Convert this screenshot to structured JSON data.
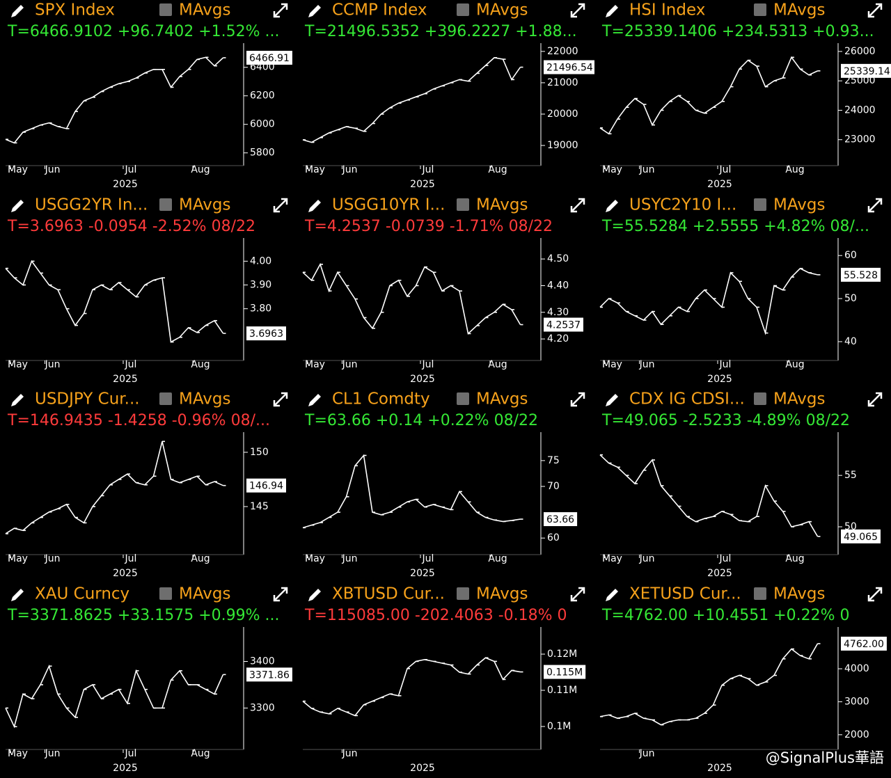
{
  "chart_data": [
    {
      "type": "line",
      "title": "SPX Index",
      "mavgs_label": "MAvgs",
      "quote": "T=6466.9102 +96.7402 +1.52% ...",
      "quote_color": "#35e835",
      "color": "#ffffff",
      "x_label": "2025",
      "categories": [
        null,
        "May",
        null,
        null,
        null,
        "Jun",
        null,
        null,
        null,
        null,
        null,
        null,
        null,
        null,
        "Jul",
        null,
        null,
        null,
        null,
        null,
        null,
        null,
        "Aug",
        null,
        null,
        null
      ],
      "values": [
        5895,
        5870,
        5945,
        5970,
        5995,
        6010,
        5985,
        5970,
        6090,
        6165,
        6190,
        6230,
        6260,
        6285,
        6300,
        6325,
        6360,
        6385,
        6385,
        6260,
        6335,
        6385,
        6455,
        6470,
        6410,
        6466.91
      ],
      "ylim": [
        5740,
        6540
      ],
      "yticks": [
        5800,
        6000,
        6200,
        6400
      ],
      "last_price": {
        "value": 6466.91,
        "label": "6466.91"
      }
    },
    {
      "type": "line",
      "title": "CCMP Index",
      "mavgs_label": "MAvgs",
      "quote": "T=21496.5352 +396.2227 +1.88...",
      "quote_color": "#35e835",
      "color": "#ffffff",
      "x_label": "2025",
      "categories": [
        null,
        "May",
        null,
        null,
        null,
        "Jun",
        null,
        null,
        null,
        null,
        null,
        null,
        null,
        null,
        "Jul",
        null,
        null,
        null,
        null,
        null,
        null,
        null,
        "Aug",
        null,
        null,
        null
      ],
      "values": [
        19180,
        19100,
        19250,
        19400,
        19500,
        19600,
        19550,
        19450,
        19700,
        20000,
        20200,
        20350,
        20450,
        20550,
        20650,
        20800,
        20900,
        21000,
        21100,
        21050,
        21300,
        21550,
        21800,
        21750,
        21100,
        21496.54
      ],
      "ylim": [
        18490,
        22130
      ],
      "yticks": [
        19000,
        20000,
        21000,
        22000
      ],
      "last_price": {
        "value": 21496.54,
        "label": "21496.54"
      }
    },
    {
      "type": "line",
      "title": "HSI Index",
      "mavgs_label": "MAvgs",
      "quote": "T=25339.1406 +234.5313 +0.93...",
      "quote_color": "#35e835",
      "color": "#ffffff",
      "x_label": "2025",
      "categories": [
        null,
        "May",
        null,
        null,
        null,
        "Jun",
        null,
        null,
        null,
        null,
        null,
        null,
        null,
        null,
        "Jul",
        null,
        null,
        null,
        null,
        null,
        null,
        null,
        "Aug",
        null,
        null,
        null
      ],
      "values": [
        23400,
        23200,
        23700,
        24100,
        24400,
        24200,
        23500,
        24000,
        24300,
        24500,
        24300,
        24000,
        23900,
        24100,
        24300,
        24800,
        25400,
        25700,
        25500,
        24800,
        25000,
        25100,
        25800,
        25400,
        25200,
        25339.14
      ],
      "ylim": [
        22260,
        26140
      ],
      "yticks": [
        23000,
        24000,
        25000,
        26000
      ],
      "last_price": {
        "value": 25339.14,
        "label": "25339.14"
      }
    },
    {
      "type": "line",
      "title": "USGG2YR In...",
      "mavgs_label": "MAvgs",
      "quote": "T=3.6963 -0.0954 -2.52% 08/22",
      "quote_color": "#ff3b3b",
      "color": "#ffffff",
      "x_label": "2025",
      "categories": [
        null,
        "May",
        null,
        null,
        null,
        "Jun",
        null,
        null,
        null,
        null,
        null,
        null,
        null,
        null,
        "Jul",
        null,
        null,
        null,
        null,
        null,
        null,
        null,
        "Aug",
        null,
        null,
        null
      ],
      "values": [
        3.97,
        3.93,
        3.9,
        4.0,
        3.95,
        3.9,
        3.88,
        3.8,
        3.73,
        3.78,
        3.88,
        3.9,
        3.88,
        3.91,
        3.88,
        3.85,
        3.9,
        3.92,
        3.93,
        3.66,
        3.68,
        3.72,
        3.7,
        3.73,
        3.75,
        3.6963
      ],
      "ylim": [
        3.6,
        4.08
      ],
      "yticks": [
        {
          "value": 3.8,
          "label": "3.80"
        },
        {
          "value": 3.9,
          "label": "3.90"
        },
        {
          "value": 4,
          "label": "4.00"
        }
      ],
      "last_price": {
        "value": 3.6963,
        "label": "3.6963"
      }
    },
    {
      "type": "line",
      "title": "USGG10YR I...",
      "mavgs_label": "MAvgs",
      "quote": "T=4.2537 -0.0739 -1.71% 08/22",
      "quote_color": "#ff3b3b",
      "color": "#ffffff",
      "x_label": "2025",
      "categories": [
        null,
        "May",
        null,
        null,
        null,
        "Jun",
        null,
        null,
        null,
        null,
        null,
        null,
        null,
        null,
        "Jul",
        null,
        null,
        null,
        null,
        null,
        null,
        null,
        "Aug",
        null,
        null,
        null
      ],
      "values": [
        4.45,
        4.42,
        4.48,
        4.38,
        4.45,
        4.4,
        4.35,
        4.28,
        4.24,
        4.3,
        4.4,
        4.42,
        4.36,
        4.4,
        4.47,
        4.45,
        4.38,
        4.4,
        4.38,
        4.22,
        4.25,
        4.28,
        4.3,
        4.33,
        4.31,
        4.2537
      ],
      "ylim": [
        4.135,
        4.563
      ],
      "yticks": [
        {
          "value": 4.2,
          "label": "4.20"
        },
        {
          "value": 4.3,
          "label": "4.30"
        },
        {
          "value": 4.4,
          "label": "4.40"
        },
        {
          "value": 4.5,
          "label": "4.50"
        }
      ],
      "last_price": {
        "value": 4.2537,
        "label": "4.2537"
      }
    },
    {
      "type": "line",
      "title": "USYC2Y10 I...",
      "mavgs_label": "MAvgs",
      "quote": "T=55.5284 +2.5555 +4.82% 08/...",
      "quote_color": "#35e835",
      "color": "#ffffff",
      "x_label": "2025",
      "categories": [
        null,
        "May",
        null,
        null,
        null,
        "Jun",
        null,
        null,
        null,
        null,
        null,
        null,
        null,
        null,
        "Jul",
        null,
        null,
        null,
        null,
        null,
        null,
        null,
        "Aug",
        null,
        null,
        null
      ],
      "values": [
        48,
        50,
        49,
        47,
        46,
        45,
        47,
        44,
        46,
        48,
        47,
        50,
        52,
        50,
        48,
        56,
        54,
        50,
        48,
        42,
        53,
        52,
        55,
        57,
        56,
        55.5284
      ],
      "ylim": [
        36.6,
        63.1
      ],
      "yticks": [
        40,
        50,
        60
      ],
      "last_price": {
        "value": 55.528,
        "label": "55.528"
      }
    },
    {
      "type": "line",
      "title": "USDJPY Cur...",
      "mavgs_label": "MAvgs",
      "quote": "T=146.9435 -1.4258 -0.96% 08/...",
      "quote_color": "#ff3b3b",
      "color": "#ffffff",
      "x_label": "2025",
      "categories": [
        null,
        "May",
        null,
        null,
        null,
        "Jun",
        null,
        null,
        null,
        null,
        null,
        null,
        null,
        null,
        "Jul",
        null,
        null,
        null,
        null,
        null,
        null,
        null,
        "Aug",
        null,
        null,
        null
      ],
      "values": [
        142.5,
        143,
        142.8,
        143.5,
        144,
        144.5,
        144.8,
        145.2,
        144,
        143.5,
        145,
        146,
        147,
        147.5,
        148,
        147.2,
        147,
        147.8,
        151,
        147.5,
        147.2,
        147.5,
        147.8,
        147,
        147.3,
        146.94
      ],
      "ylim": [
        140.96,
        151.47
      ],
      "yticks": [
        145,
        150
      ],
      "last_price": {
        "value": 146.94,
        "label": "146.94"
      }
    },
    {
      "type": "line",
      "title": "CL1 Comdty",
      "mavgs_label": "MAvgs",
      "quote": "T=63.66 +0.14 +0.22% 08/22",
      "quote_color": "#35e835",
      "color": "#ffffff",
      "x_label": "2025",
      "categories": [
        null,
        "May",
        null,
        null,
        null,
        "Jun",
        null,
        null,
        null,
        null,
        null,
        null,
        null,
        null,
        "Jul",
        null,
        null,
        null,
        null,
        null,
        null,
        null,
        "Aug",
        null,
        null,
        null
      ],
      "values": [
        62,
        62.5,
        63,
        64,
        65,
        68,
        74,
        76,
        65,
        64.5,
        65,
        66,
        67,
        67.5,
        66,
        66.5,
        66,
        65.5,
        69,
        67,
        65,
        64,
        63.5,
        63.2,
        63.4,
        63.66
      ],
      "ylim": [
        57.6,
        79.7
      ],
      "yticks": [
        60,
        70,
        75
      ],
      "last_price": {
        "value": 63.66,
        "label": "63.66"
      }
    },
    {
      "type": "line",
      "title": "CDX IG CDSI...",
      "mavgs_label": "MAvgs",
      "quote": "T=49.065 -2.5233 -4.89% 08/22",
      "quote_color": "#35e835",
      "color": "#ffffff",
      "x_label": "2025",
      "categories": [
        null,
        "May",
        null,
        null,
        null,
        "Jun",
        null,
        null,
        null,
        null,
        null,
        null,
        null,
        null,
        "Jul",
        null,
        null,
        null,
        null,
        null,
        null,
        null,
        "Aug",
        null,
        null,
        null
      ],
      "values": [
        57,
        56.2,
        55.8,
        55,
        54.2,
        55.5,
        56.5,
        54,
        53,
        52,
        51,
        50.5,
        50.8,
        51,
        51.5,
        51.2,
        50.6,
        50.5,
        51,
        54,
        52.5,
        51.5,
        50,
        50.2,
        50.5,
        49.065
      ],
      "ylim": [
        47.7,
        58.8
      ],
      "yticks": [
        50,
        55
      ],
      "last_price": {
        "value": 49.065,
        "label": "49.065"
      }
    },
    {
      "type": "line",
      "title": "XAU Curncy",
      "mavgs_label": "MAvgs",
      "quote": "T=3371.8625 +33.1575 +0.99% ...",
      "quote_color": "#35e835",
      "color": "#ffffff",
      "x_label": "2025",
      "categories": [
        null,
        "May",
        null,
        null,
        null,
        "Jun",
        null,
        null,
        null,
        null,
        null,
        null,
        null,
        null,
        "Jul",
        null,
        null,
        null,
        null,
        null,
        null,
        null,
        "Aug",
        null,
        null,
        null
      ],
      "values": [
        3300,
        3260,
        3330,
        3320,
        3350,
        3390,
        3330,
        3300,
        3280,
        3340,
        3350,
        3320,
        3330,
        3340,
        3310,
        3380,
        3340,
        3300,
        3300,
        3360,
        3380,
        3350,
        3350,
        3340,
        3330,
        3371.86
      ],
      "ylim": [
        3220,
        3465
      ],
      "yticks": [
        3300,
        3400
      ],
      "last_price": {
        "value": 3371.86,
        "label": "3371.86"
      }
    },
    {
      "type": "line",
      "title": "XBTUSD Cur...",
      "mavgs_label": "MAvgs",
      "quote": "T=115085.00 -202.4063 -0.18% 0",
      "quote_color": "#ff3b3b",
      "color": "#ffffff",
      "x_label": "2025",
      "categories": [
        null,
        null,
        null,
        null,
        null,
        "Jun",
        null,
        null,
        null,
        null,
        null,
        null,
        null,
        null,
        null,
        null,
        null,
        null,
        null,
        null,
        null,
        null,
        null,
        null,
        null,
        null
      ],
      "values": [
        107000,
        105000,
        104000,
        103500,
        105000,
        104000,
        103000,
        106000,
        107000,
        108000,
        109000,
        108500,
        116000,
        118000,
        118500,
        118000,
        117500,
        117000,
        115000,
        114500,
        117000,
        119000,
        118000,
        113000,
        115500,
        115085
      ],
      "ylim": [
        94800,
        126350
      ],
      "yticks": [
        {
          "value": 100000,
          "label": "0.1M"
        },
        {
          "value": 110000,
          "label": "0.11M"
        },
        {
          "value": 120000,
          "label": "0.12M"
        }
      ],
      "last_price": {
        "value": 115085,
        "label": "0.115M"
      }
    },
    {
      "type": "line",
      "title": "XETUSD Cur...",
      "mavgs_label": "MAvgs",
      "quote": "T=4762.00 +10.4551 +0.22% 0",
      "quote_color": "#35e835",
      "color": "#ffffff",
      "x_label": "2025",
      "categories": [
        null,
        null,
        null,
        null,
        null,
        "Jun",
        null,
        null,
        null,
        null,
        null,
        null,
        null,
        null,
        null,
        null,
        null,
        null,
        null,
        null,
        null,
        null,
        null,
        null,
        null,
        null
      ],
      "values": [
        2550,
        2600,
        2500,
        2550,
        2650,
        2500,
        2450,
        2300,
        2400,
        2450,
        2450,
        2500,
        2650,
        2900,
        3500,
        3700,
        3800,
        3700,
        3500,
        3600,
        3800,
        4300,
        4600,
        4400,
        4300,
        4762
      ],
      "ylim": [
        1680,
        5140
      ],
      "yticks": [
        2000,
        3000,
        4000
      ],
      "last_price": {
        "value": 4762,
        "label": "4762.00"
      }
    }
  ],
  "watermark": "@SignalPlus華語"
}
